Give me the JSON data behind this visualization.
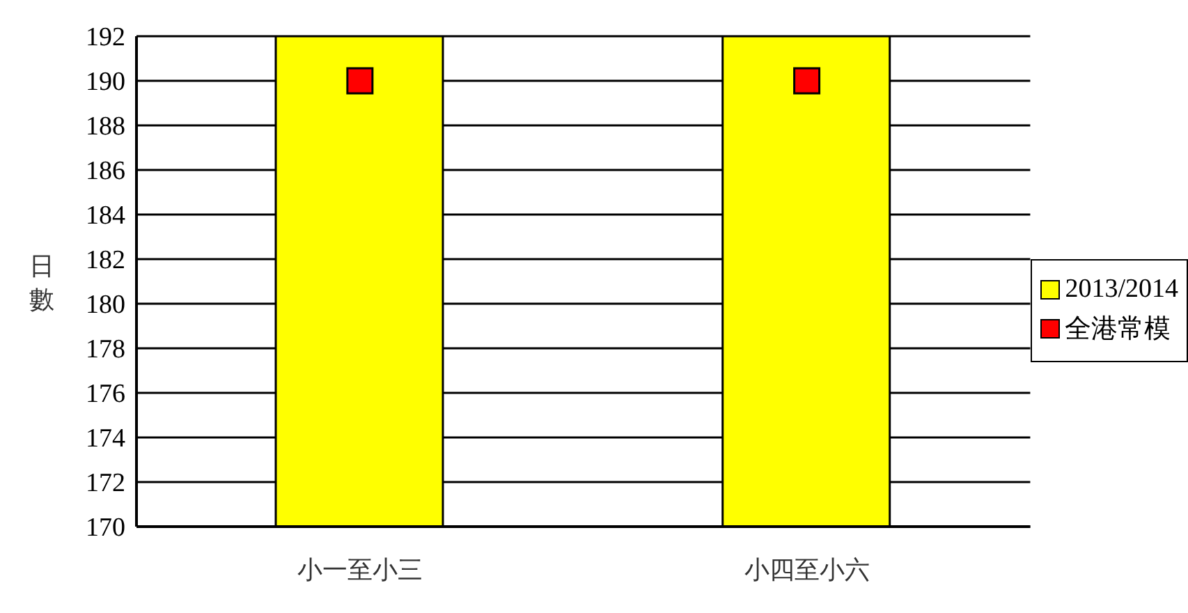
{
  "chart_data": {
    "type": "bar",
    "ylabel": "日數",
    "categories": [
      "小一至小三",
      "小四至小六"
    ],
    "series": [
      {
        "name": "2013/2014",
        "color": "#ffff00",
        "values": [
          192,
          192
        ]
      },
      {
        "name": "全港常模",
        "type": "scatter",
        "color": "#ff0000",
        "values": [
          190,
          190
        ]
      }
    ],
    "ylim": [
      170,
      192
    ],
    "yticks": [
      170,
      172,
      174,
      176,
      178,
      180,
      182,
      184,
      186,
      188,
      190,
      192
    ],
    "grid": "y",
    "legend": "right",
    "marker": "square"
  }
}
